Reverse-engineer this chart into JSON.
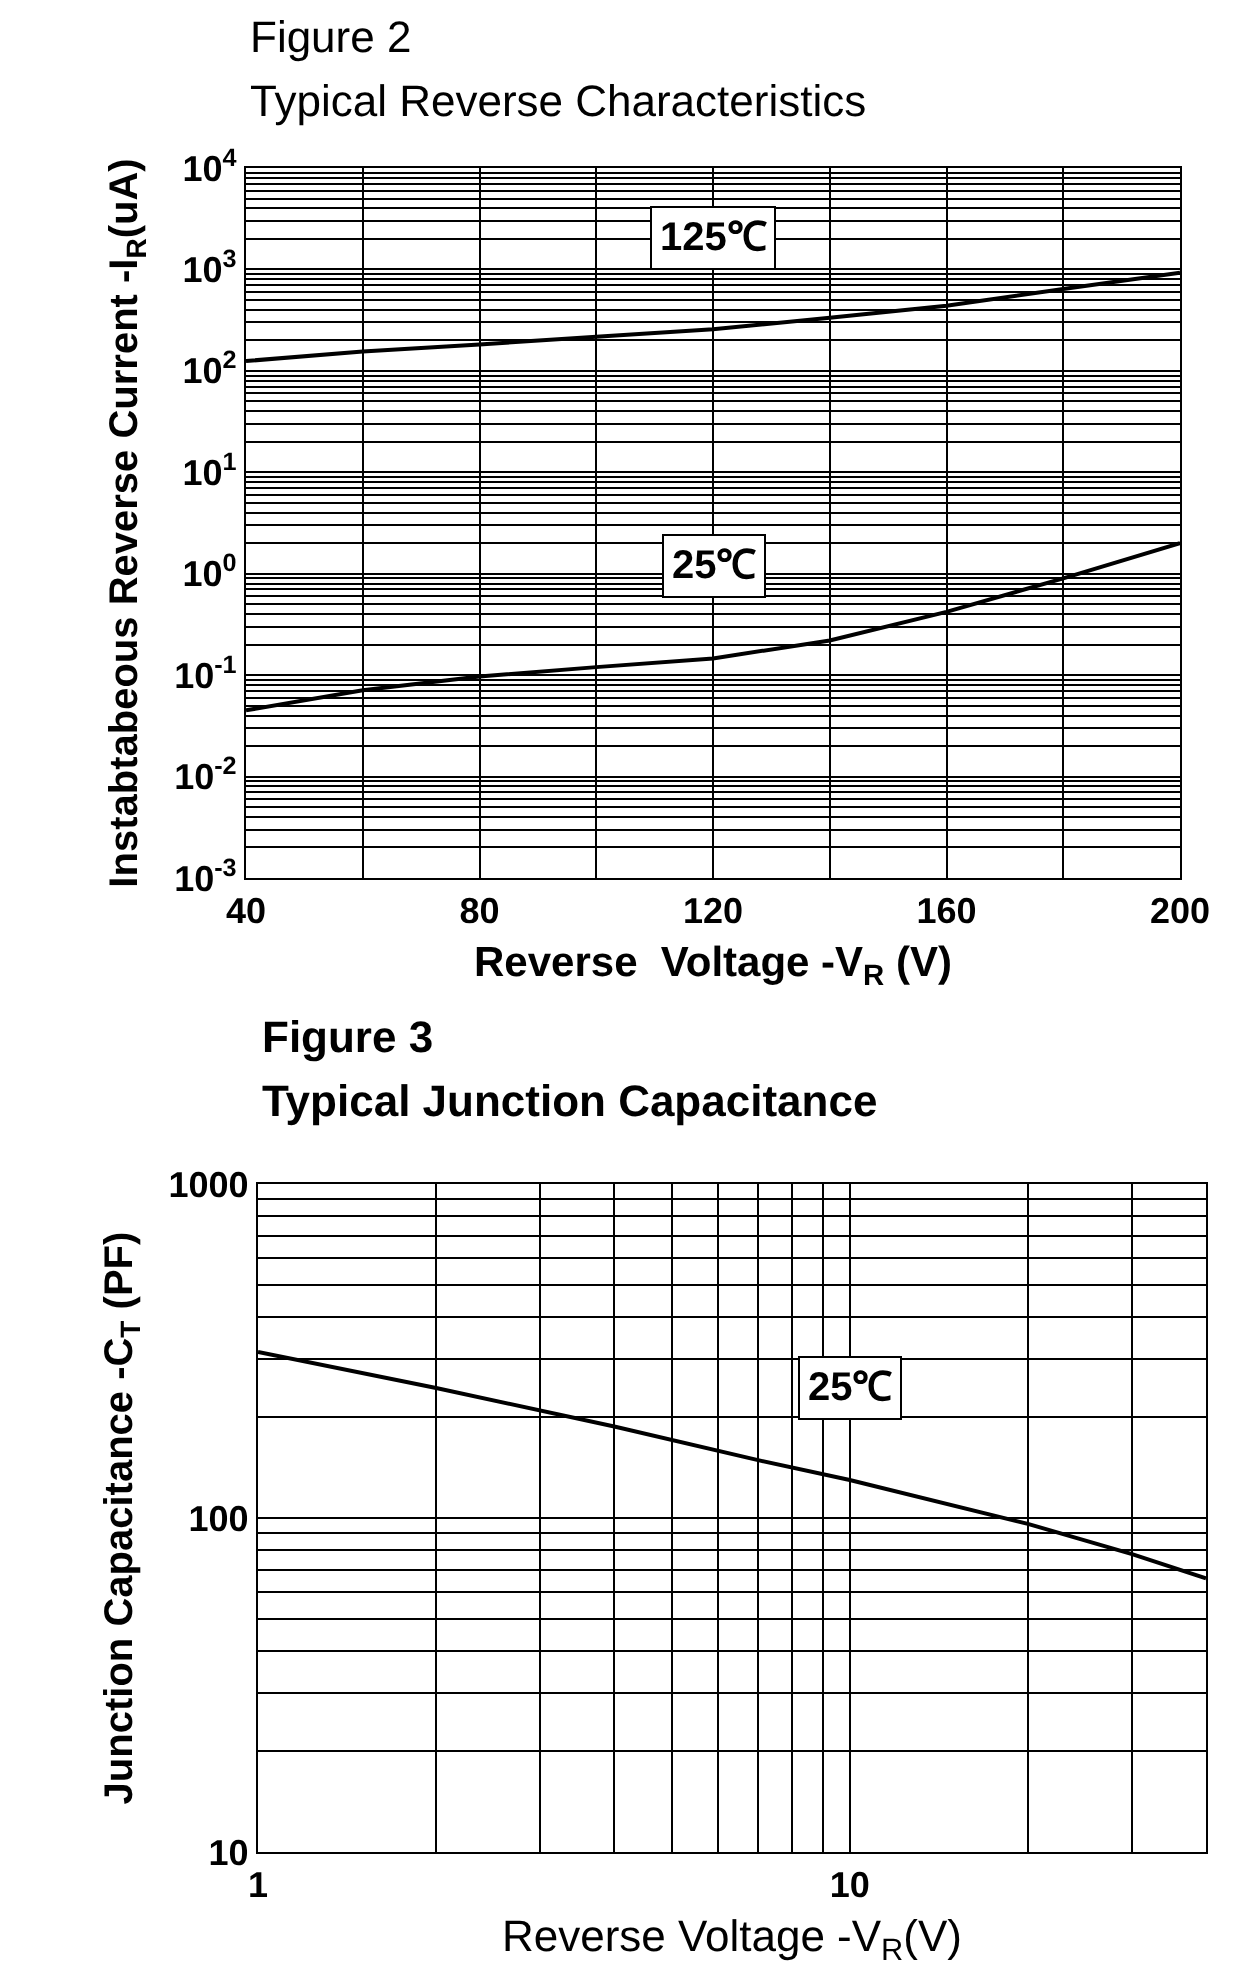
{
  "chart_data": [
    {
      "type": "line",
      "title": "Figure 2",
      "subtitle": "Typical Reverse Characteristics",
      "xlabel": "Reverse  Voltage -V$_{R}$ (V)",
      "ylabel": "Instabtabeous Reverse Current -I$_{R}$(uA)",
      "log": "y",
      "grid": true,
      "marker": "none",
      "line_style": "solid",
      "xlim": [
        40,
        200
      ],
      "ylim": [
        0.001,
        10000
      ],
      "xticks": [
        40,
        {
          "value": 60,
          "label": null
        },
        80,
        {
          "value": 100,
          "label": null
        },
        120,
        {
          "value": 140,
          "label": null
        },
        160,
        {
          "value": 180,
          "label": null
        },
        200
      ],
      "yticks": [
        {
          "value": 0.001,
          "label": "10$^{-3}$"
        },
        {
          "value": 0.002,
          "label": null
        },
        {
          "value": 0.003,
          "label": null
        },
        {
          "value": 0.004,
          "label": null
        },
        {
          "value": 0.005,
          "label": null
        },
        {
          "value": 0.006,
          "label": null
        },
        {
          "value": 0.007,
          "label": null
        },
        {
          "value": 0.008,
          "label": null
        },
        {
          "value": 0.009,
          "label": null
        },
        {
          "value": 0.01,
          "label": "10$^{-2}$"
        },
        {
          "value": 0.02,
          "label": null
        },
        {
          "value": 0.03,
          "label": null
        },
        {
          "value": 0.04,
          "label": null
        },
        {
          "value": 0.05,
          "label": null
        },
        {
          "value": 0.06,
          "label": null
        },
        {
          "value": 0.07,
          "label": null
        },
        {
          "value": 0.08,
          "label": null
        },
        {
          "value": 0.09,
          "label": null
        },
        {
          "value": 0.1,
          "label": "10$^{-1}$"
        },
        {
          "value": 0.2,
          "label": null
        },
        {
          "value": 0.3,
          "label": null
        },
        {
          "value": 0.4,
          "label": null
        },
        {
          "value": 0.5,
          "label": null
        },
        {
          "value": 0.6,
          "label": null
        },
        {
          "value": 0.7,
          "label": null
        },
        {
          "value": 0.8,
          "label": null
        },
        {
          "value": 0.9,
          "label": null
        },
        {
          "value": 1,
          "label": "10$^{0}$"
        },
        {
          "value": 2,
          "label": null
        },
        {
          "value": 3,
          "label": null
        },
        {
          "value": 4,
          "label": null
        },
        {
          "value": 5,
          "label": null
        },
        {
          "value": 6,
          "label": null
        },
        {
          "value": 7,
          "label": null
        },
        {
          "value": 8,
          "label": null
        },
        {
          "value": 9,
          "label": null
        },
        {
          "value": 10,
          "label": "10$^{1}$"
        },
        {
          "value": 20,
          "label": null
        },
        {
          "value": 30,
          "label": null
        },
        {
          "value": 40,
          "label": null
        },
        {
          "value": 50,
          "label": null
        },
        {
          "value": 60,
          "label": null
        },
        {
          "value": 70,
          "label": null
        },
        {
          "value": 80,
          "label": null
        },
        {
          "value": 90,
          "label": null
        },
        {
          "value": 100,
          "label": "10$^{2}$"
        },
        {
          "value": 200,
          "label": null
        },
        {
          "value": 300,
          "label": null
        },
        {
          "value": 400,
          "label": null
        },
        {
          "value": 500,
          "label": null
        },
        {
          "value": 600,
          "label": null
        },
        {
          "value": 700,
          "label": null
        },
        {
          "value": 800,
          "label": null
        },
        {
          "value": 900,
          "label": null
        },
        {
          "value": 1000,
          "label": "10$^{3}$"
        },
        {
          "value": 2000,
          "label": null
        },
        {
          "value": 3000,
          "label": null
        },
        {
          "value": 4000,
          "label": null
        },
        {
          "value": 5000,
          "label": null
        },
        {
          "value": 6000,
          "label": null
        },
        {
          "value": 7000,
          "label": null
        },
        {
          "value": 8000,
          "label": null
        },
        {
          "value": 9000,
          "label": null
        },
        {
          "value": 10000,
          "label": "10$^{4}$"
        }
      ],
      "x": [
        40,
        60,
        80,
        100,
        120,
        140,
        160,
        180,
        200
      ],
      "series": [
        {
          "name": "125℃",
          "color": "#000000",
          "values": [
            125,
            155,
            182,
            217,
            257,
            333,
            438,
            640,
            930
          ]
        },
        {
          "name": "25℃",
          "color": "#000000",
          "values": [
            0.045,
            0.071,
            0.097,
            0.12,
            0.146,
            0.22,
            0.42,
            0.9,
            2.0
          ]
        }
      ]
    },
    {
      "type": "line",
      "title": "Figure 3",
      "subtitle": "Typical Junction Capacitance",
      "xlabel": "Reverse Voltage -V$_{R}$(V)",
      "ylabel": "Junction Capacitance -C$_{T}$ (PF)",
      "log": "xy",
      "grid": true,
      "marker": "none",
      "line_style": "solid",
      "xlim": [
        1,
        40
      ],
      "ylim": [
        10,
        1000
      ],
      "xticks": [
        1,
        {
          "value": 2,
          "label": null
        },
        {
          "value": 3,
          "label": null
        },
        {
          "value": 4,
          "label": null
        },
        {
          "value": 5,
          "label": null
        },
        {
          "value": 6,
          "label": null
        },
        {
          "value": 7,
          "label": null
        },
        {
          "value": 8,
          "label": null
        },
        {
          "value": 9,
          "label": null
        },
        10,
        {
          "value": 20,
          "label": null
        },
        {
          "value": 30,
          "label": null
        }
      ],
      "yticks": [
        10,
        {
          "value": 20,
          "label": null
        },
        {
          "value": 30,
          "label": null
        },
        {
          "value": 40,
          "label": null
        },
        {
          "value": 50,
          "label": null
        },
        {
          "value": 60,
          "label": null
        },
        {
          "value": 70,
          "label": null
        },
        {
          "value": 80,
          "label": null
        },
        {
          "value": 90,
          "label": null
        },
        100,
        {
          "value": 200,
          "label": null
        },
        {
          "value": 300,
          "label": null
        },
        {
          "value": 400,
          "label": null
        },
        {
          "value": 500,
          "label": null
        },
        {
          "value": 600,
          "label": null
        },
        {
          "value": 700,
          "label": null
        },
        {
          "value": 800,
          "label": null
        },
        {
          "value": 900,
          "label": null
        },
        1000
      ],
      "x": [
        1,
        2,
        4,
        7,
        10,
        20,
        30,
        40
      ],
      "series": [
        {
          "name": "25℃",
          "color": "#000000",
          "values": [
            314,
            245,
            188,
            149,
            130,
            96,
            78,
            66
          ]
        }
      ]
    }
  ]
}
